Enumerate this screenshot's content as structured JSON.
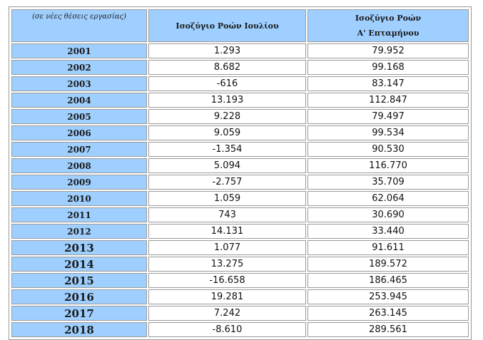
{
  "table": {
    "note": "(σε νέες θέσεις εργασίας)",
    "col1": "Ισοζύγιο Ροών Ιουλίου",
    "col2_line1": "Ισοζύγιο Ροών",
    "col2_line2": "Α' Επταμήνου",
    "rows": [
      {
        "year": "2001",
        "july": "1.293",
        "seven": "79.952"
      },
      {
        "year": "2002",
        "july": "8.682",
        "seven": "99.168"
      },
      {
        "year": "2003",
        "july": "-616",
        "seven": "83.147"
      },
      {
        "year": "2004",
        "july": "13.193",
        "seven": "112.847"
      },
      {
        "year": "2005",
        "july": "9.228",
        "seven": "79.497"
      },
      {
        "year": "2006",
        "july": "9.059",
        "seven": "99.534"
      },
      {
        "year": "2007",
        "july": "-1.354",
        "seven": "90.530"
      },
      {
        "year": "2008",
        "july": "5.094",
        "seven": "116.770"
      },
      {
        "year": "2009",
        "july": "-2.757",
        "seven": "35.709"
      },
      {
        "year": "2010",
        "july": "1.059",
        "seven": "62.064"
      },
      {
        "year": "2011",
        "july": "743",
        "seven": "30.690"
      },
      {
        "year": "2012",
        "july": "14.131",
        "seven": "33.440"
      },
      {
        "year": "2013",
        "july": "1.077",
        "seven": "91.611"
      },
      {
        "year": "2014",
        "july": "13.275",
        "seven": "189.572"
      },
      {
        "year": "2015",
        "july": "-16.658",
        "seven": "186.465"
      },
      {
        "year": "2016",
        "july": "19.281",
        "seven": "253.945"
      },
      {
        "year": "2017",
        "july": "7.242",
        "seven": "263.145"
      },
      {
        "year": "2018",
        "july": "-8.610",
        "seven": "289.561"
      }
    ]
  }
}
